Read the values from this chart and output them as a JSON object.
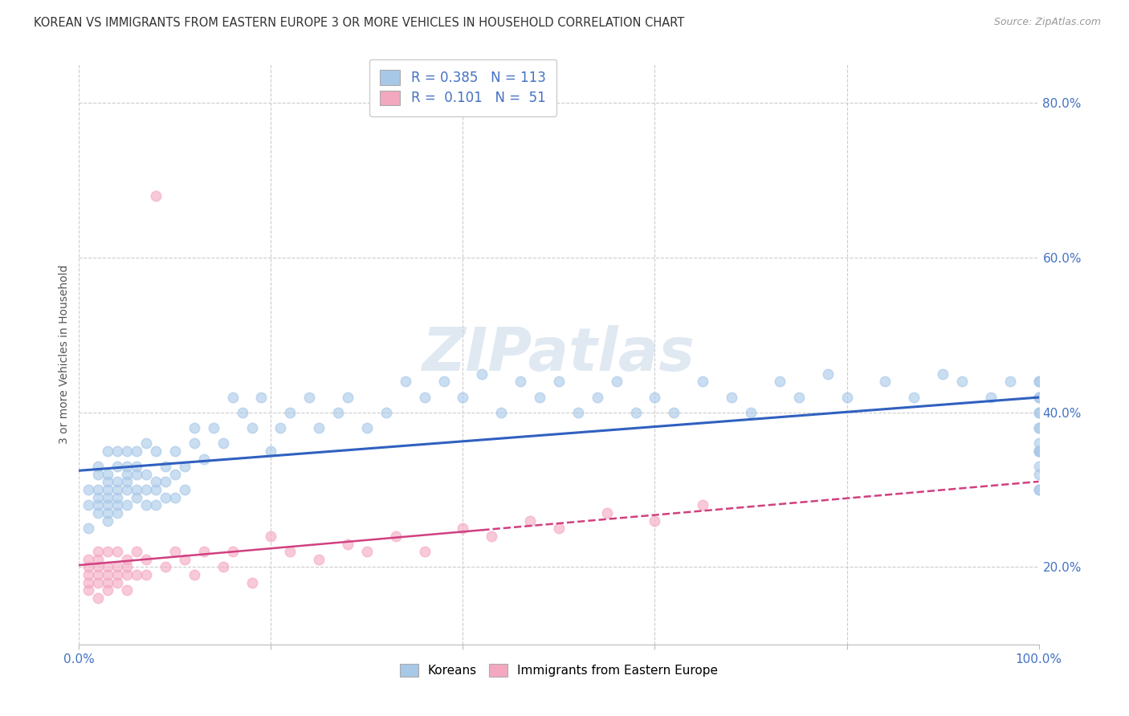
{
  "title": "KOREAN VS IMMIGRANTS FROM EASTERN EUROPE 3 OR MORE VEHICLES IN HOUSEHOLD CORRELATION CHART",
  "source": "Source: ZipAtlas.com",
  "ylabel": "3 or more Vehicles in Household",
  "xlim": [
    0.0,
    100.0
  ],
  "ylim": [
    10.0,
    85.0
  ],
  "yticks": [
    20.0,
    40.0,
    60.0,
    80.0
  ],
  "ytick_labels": [
    "20.0%",
    "40.0%",
    "60.0%",
    "80.0%"
  ],
  "xtick_positions": [
    0,
    20,
    40,
    60,
    80,
    100
  ],
  "xtick_labels": [
    "0.0%",
    "",
    "",
    "",
    "",
    "100.0%"
  ],
  "korean_R": "0.385",
  "korean_N": "113",
  "eastern_R": "0.101",
  "eastern_N": "51",
  "korean_scatter_color": "#a8c8e8",
  "eastern_scatter_color": "#f4a8c0",
  "korean_line_color": "#3060c0",
  "eastern_line_color": "#d04080",
  "korean_legend_color": "#a8c8e8",
  "eastern_legend_color": "#f4a8c0",
  "grid_color": "#cccccc",
  "title_color": "#333333",
  "source_color": "#999999",
  "tick_color": "#4472C4",
  "background": "#ffffff",
  "watermark_color": "#c8d8e8",
  "watermark_alpha": 0.55,
  "korean_x": [
    1,
    1,
    1,
    2,
    2,
    2,
    2,
    2,
    2,
    3,
    3,
    3,
    3,
    3,
    3,
    3,
    3,
    4,
    4,
    4,
    4,
    4,
    4,
    4,
    5,
    5,
    5,
    5,
    5,
    5,
    6,
    6,
    6,
    6,
    6,
    7,
    7,
    7,
    7,
    8,
    8,
    8,
    8,
    9,
    9,
    9,
    10,
    10,
    10,
    11,
    11,
    12,
    12,
    13,
    14,
    15,
    16,
    17,
    18,
    19,
    20,
    21,
    22,
    24,
    25,
    27,
    28,
    30,
    32,
    34,
    36,
    38,
    40,
    42,
    44,
    46,
    48,
    50,
    52,
    54,
    56,
    58,
    60,
    62,
    65,
    68,
    70,
    73,
    75,
    78,
    80,
    84,
    87,
    90,
    92,
    95,
    97,
    100,
    100,
    100,
    100,
    100,
    100,
    100,
    100,
    100,
    100,
    100,
    100,
    100,
    100,
    100,
    100
  ],
  "korean_y": [
    28,
    30,
    25,
    27,
    32,
    28,
    30,
    33,
    29,
    26,
    28,
    32,
    35,
    30,
    27,
    31,
    29,
    28,
    30,
    33,
    27,
    31,
    35,
    29,
    32,
    28,
    30,
    35,
    33,
    31,
    29,
    32,
    35,
    30,
    33,
    28,
    32,
    36,
    30,
    28,
    31,
    35,
    30,
    29,
    33,
    31,
    32,
    35,
    29,
    30,
    33,
    38,
    36,
    34,
    38,
    36,
    42,
    40,
    38,
    42,
    35,
    38,
    40,
    42,
    38,
    40,
    42,
    38,
    40,
    44,
    42,
    44,
    42,
    45,
    40,
    44,
    42,
    44,
    40,
    42,
    44,
    40,
    42,
    40,
    44,
    42,
    40,
    44,
    42,
    45,
    42,
    44,
    42,
    45,
    44,
    42,
    44,
    30,
    32,
    35,
    38,
    40,
    42,
    44,
    35,
    38,
    42,
    30,
    33,
    36,
    40,
    44,
    35
  ],
  "eastern_x": [
    1,
    1,
    1,
    1,
    1,
    2,
    2,
    2,
    2,
    2,
    2,
    3,
    3,
    3,
    3,
    3,
    4,
    4,
    4,
    4,
    5,
    5,
    5,
    5,
    6,
    6,
    7,
    7,
    8,
    9,
    10,
    11,
    12,
    13,
    15,
    16,
    18,
    20,
    22,
    25,
    28,
    30,
    33,
    36,
    40,
    43,
    47,
    50,
    55,
    60,
    65
  ],
  "eastern_y": [
    19,
    21,
    18,
    20,
    17,
    20,
    18,
    22,
    19,
    16,
    21,
    18,
    20,
    22,
    19,
    17,
    20,
    18,
    22,
    19,
    21,
    19,
    17,
    20,
    22,
    19,
    21,
    19,
    68,
    20,
    22,
    21,
    19,
    22,
    20,
    22,
    18,
    24,
    22,
    21,
    23,
    22,
    24,
    22,
    25,
    24,
    26,
    25,
    27,
    26,
    28
  ]
}
